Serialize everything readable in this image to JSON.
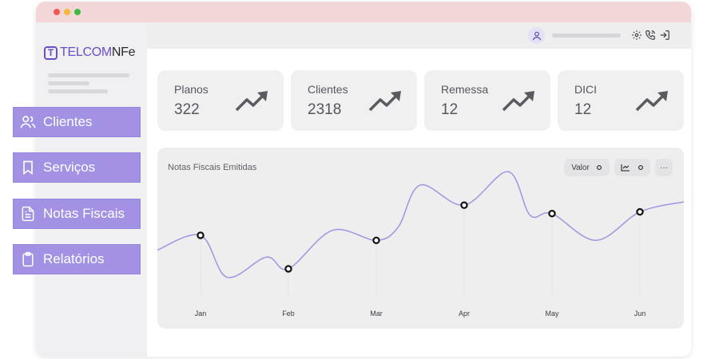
{
  "app": {
    "logo_part1": "TELCOM",
    "logo_part2": "NFe"
  },
  "nav": {
    "items": [
      {
        "label": "Clientes",
        "icon": "users-icon"
      },
      {
        "label": "Serviços",
        "icon": "bookmark-icon"
      },
      {
        "label": "Notas Fiscais",
        "icon": "file-text-icon"
      },
      {
        "label": "Relatórios",
        "icon": "clipboard-icon"
      }
    ]
  },
  "header": {
    "icons": [
      "user-avatar-icon",
      "gear-icon",
      "phone-icon",
      "logout-icon"
    ]
  },
  "cards": [
    {
      "label": "Planos",
      "value": "322"
    },
    {
      "label": "Clientes",
      "value": "2318"
    },
    {
      "label": "Remessa",
      "value": "12"
    },
    {
      "label": "DICI",
      "value": "12"
    }
  ],
  "chart": {
    "title": "Notas Fiscais Emitidas",
    "controls": {
      "value_label": "Valor",
      "more_label": "···"
    }
  },
  "chart_data": {
    "type": "line",
    "title": "Notas Fiscais Emitidas",
    "categories": [
      "Jan",
      "Feb",
      "Mar",
      "Apr",
      "May",
      "Jun"
    ],
    "series": [
      {
        "values": [
          60,
          40,
          57,
          78,
          73,
          74
        ]
      }
    ],
    "curve_points": [
      {
        "x": -0.5,
        "y": 51
      },
      {
        "x": 0,
        "y": 60
      },
      {
        "x": 0.3,
        "y": 35
      },
      {
        "x": 0.75,
        "y": 47
      },
      {
        "x": 1,
        "y": 40
      },
      {
        "x": 1.5,
        "y": 63
      },
      {
        "x": 2,
        "y": 57
      },
      {
        "x": 2.25,
        "y": 65
      },
      {
        "x": 2.5,
        "y": 90
      },
      {
        "x": 3,
        "y": 78
      },
      {
        "x": 3.5,
        "y": 98
      },
      {
        "x": 3.75,
        "y": 72
      },
      {
        "x": 4,
        "y": 73
      },
      {
        "x": 4.5,
        "y": 57
      },
      {
        "x": 5,
        "y": 74
      },
      {
        "x": 5.5,
        "y": 80
      }
    ],
    "colors": {
      "line": "#a797e0",
      "marker_stroke": "#111111",
      "marker_fill": "#ffffff"
    },
    "grid": false,
    "legend": "none",
    "ylim": [
      0,
      100
    ]
  }
}
